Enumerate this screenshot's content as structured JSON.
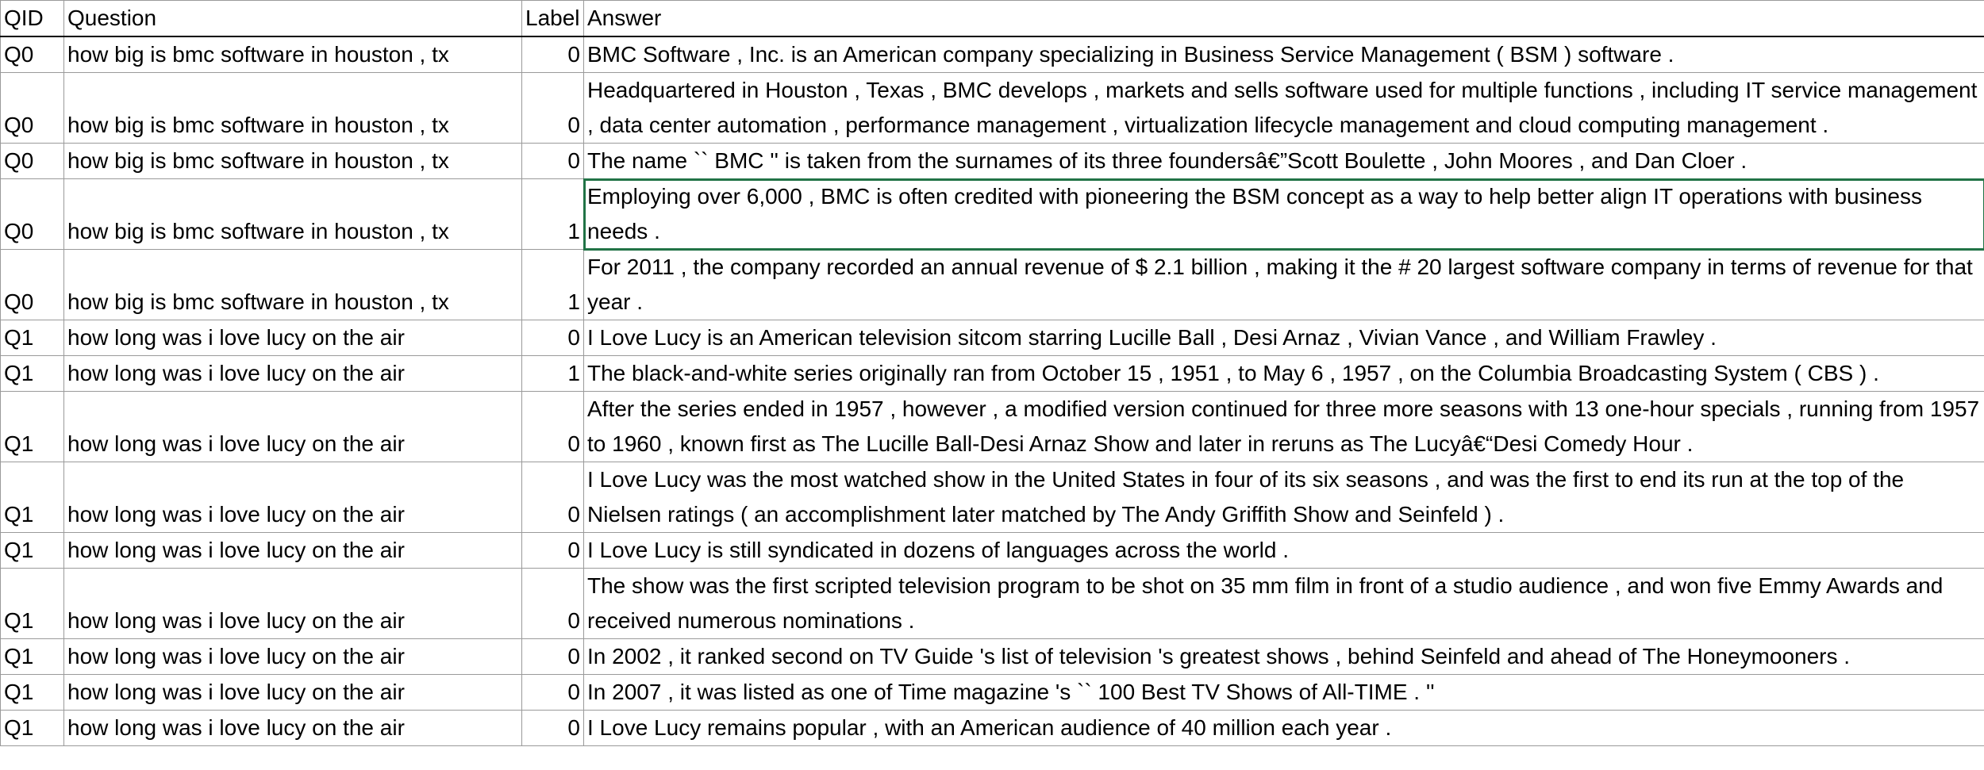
{
  "columns": {
    "qid": "QID",
    "question": "Question",
    "label": "Label",
    "answer": "Answer"
  },
  "rows": [
    {
      "qid": "Q0",
      "question": "how big is bmc software in houston , tx",
      "label": "0",
      "answer": "BMC Software , Inc. is an American company specializing in Business Service Management ( BSM ) software ."
    },
    {
      "qid": "Q0",
      "question": "how big is bmc software in houston , tx",
      "label": "0",
      "answer": "Headquartered in Houston , Texas , BMC develops , markets and sells software used for multiple functions , including IT service management , data center automation , performance management , virtualization lifecycle management and cloud computing management ."
    },
    {
      "qid": "Q0",
      "question": "how big is bmc software in houston , tx",
      "label": "0",
      "answer": "The name `` BMC '' is taken from the surnames of its three foundersâ€”Scott Boulette , John Moores , and Dan Cloer ."
    },
    {
      "qid": "Q0",
      "question": "how big is bmc software in houston , tx",
      "label": "1",
      "answer": "Employing over 6,000 , BMC is often credited with pioneering the BSM concept as a way to help better align IT operations with business needs ."
    },
    {
      "qid": "Q0",
      "question": "how big is bmc software in houston , tx",
      "label": "1",
      "answer": "For 2011 , the company recorded an annual revenue of $ 2.1 billion , making it the # 20 largest software company in terms of revenue for that year ."
    },
    {
      "qid": "Q1",
      "question": "how long was i love lucy on the air",
      "label": "0",
      "answer": "I Love Lucy is an American television sitcom starring Lucille Ball , Desi Arnaz , Vivian Vance , and William Frawley ."
    },
    {
      "qid": "Q1",
      "question": "how long was i love lucy on the air",
      "label": "1",
      "answer": "The black-and-white series originally ran from October 15 , 1951 , to May 6 , 1957 , on the Columbia Broadcasting System ( CBS ) ."
    },
    {
      "qid": "Q1",
      "question": "how long was i love lucy on the air",
      "label": "0",
      "answer": "After the series ended in 1957 , however , a modified version continued for three more seasons with 13 one-hour specials , running from 1957 to 1960 , known first as The Lucille Ball-Desi Arnaz Show and later in reruns as The Lucyâ€“Desi Comedy Hour ."
    },
    {
      "qid": "Q1",
      "question": "how long was i love lucy on the air",
      "label": "0",
      "answer": "I Love Lucy was the most watched show in the United States in four of its six seasons , and was the first to end its run at the top of the Nielsen ratings ( an accomplishment later matched by The Andy Griffith Show and Seinfeld ) ."
    },
    {
      "qid": "Q1",
      "question": "how long was i love lucy on the air",
      "label": "0",
      "answer": "I Love Lucy is still syndicated in dozens of languages across the world ."
    },
    {
      "qid": "Q1",
      "question": "how long was i love lucy on the air",
      "label": "0",
      "answer": "The show was the first scripted television program to be shot on 35 mm film in front of a studio audience , and won five Emmy Awards and received numerous nominations ."
    },
    {
      "qid": "Q1",
      "question": "how long was i love lucy on the air",
      "label": "0",
      "answer": "In 2002 , it ranked second on TV Guide 's list of television 's greatest shows , behind Seinfeld and ahead of The Honeymooners ."
    },
    {
      "qid": "Q1",
      "question": "how long was i love lucy on the air",
      "label": "0",
      "answer": "In 2007 , it was listed as one of Time magazine 's `` 100 Best TV Shows of All-TIME . ''"
    },
    {
      "qid": "Q1",
      "question": "how long was i love lucy on the air",
      "label": "0",
      "answer": "I Love Lucy remains popular , with an American audience of 40 million each year ."
    }
  ],
  "selected_row_index": 3,
  "colors": {
    "grid": "#9a9a9a",
    "header_border": "#000000",
    "selection": "#217346"
  }
}
